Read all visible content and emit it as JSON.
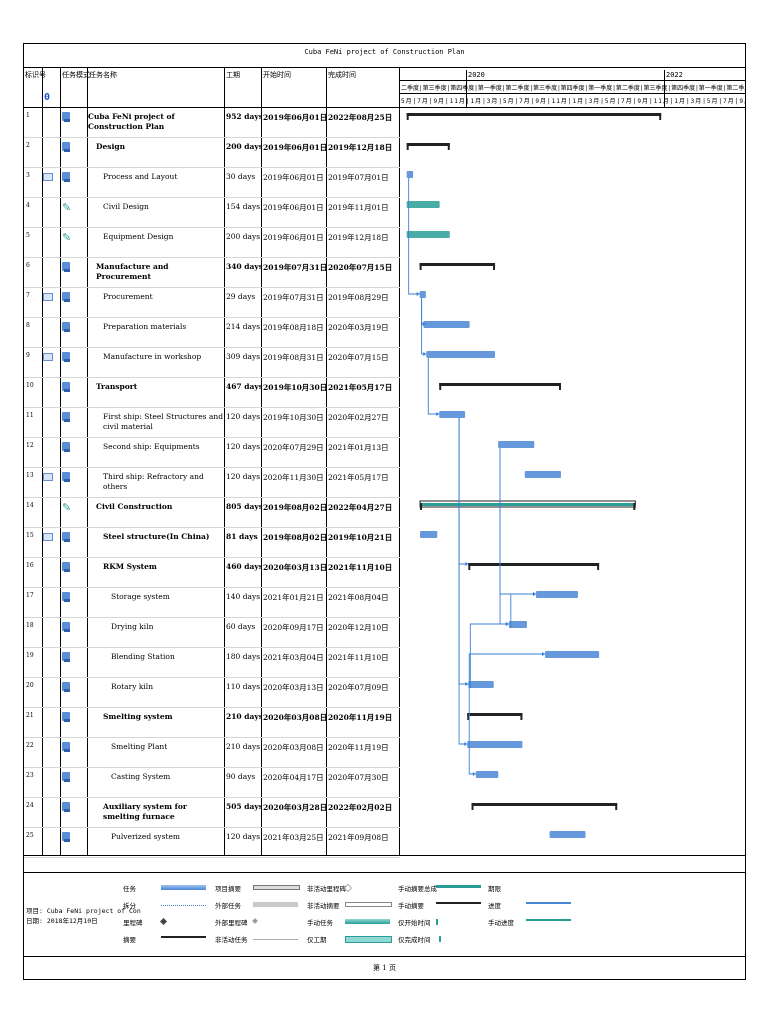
{
  "doc_title": "Cuba FeNi project of Construction Plan",
  "columns": {
    "id": "标识号",
    "mode": "任务模式",
    "name": "任务名称",
    "duration": "工期",
    "start": "开始时间",
    "finish": "完成时间"
  },
  "info_icon": "0",
  "timeline": {
    "years": [
      "2020",
      "2022"
    ],
    "quarters": "二季度|第三季度|第四季度|第一季度|第二季度|第三季度|第四季度|第一季度|第二季度|第三季度|第四季度|第一季度|第二季度|第三季度|第四季度|第一季度|第二季度|第三季度",
    "months": "5月|7月|9月|11月|1月|3月|5月|7月|9月|11月|1月|3月|5月|7月|9月|11月|1月|3月|5月|7月|9月"
  },
  "tasks": [
    {
      "id": "1",
      "name": "Cuba FeNi project of Construction Plan",
      "duration": "952 days",
      "start": "2019年06月01日",
      "finish": "2022年08月25日",
      "summary": true,
      "indent": 0
    },
    {
      "id": "2",
      "name": "Design",
      "duration": "200 days",
      "start": "2019年06月01日",
      "finish": "2019年12月18日",
      "summary": true,
      "indent": 1
    },
    {
      "id": "3",
      "name": "Process and Layout",
      "duration": "30 days",
      "start": "2019年06月01日",
      "finish": "2019年07月01日",
      "summary": false,
      "indent": 2
    },
    {
      "id": "4",
      "name": "Civil Design",
      "duration": "154 days",
      "start": "2019年06月01日",
      "finish": "2019年11月01日",
      "summary": false,
      "indent": 2
    },
    {
      "id": "5",
      "name": "Equipment Design",
      "duration": "200 days",
      "start": "2019年06月01日",
      "finish": "2019年12月18日",
      "summary": false,
      "indent": 2
    },
    {
      "id": "6",
      "name": "Manufacture and Procurement",
      "duration": "340 days",
      "start": "2019年07月31日",
      "finish": "2020年07月15日",
      "summary": true,
      "indent": 1
    },
    {
      "id": "7",
      "name": "Procurement",
      "duration": "29 days",
      "start": "2019年07月31日",
      "finish": "2019年08月29日",
      "summary": false,
      "indent": 2
    },
    {
      "id": "8",
      "name": "Preparation materials",
      "duration": "214 days",
      "start": "2019年08月18日",
      "finish": "2020年03月19日",
      "summary": false,
      "indent": 2
    },
    {
      "id": "9",
      "name": "Manufacture in workshop",
      "duration": "309 days",
      "start": "2019年08月31日",
      "finish": "2020年07月15日",
      "summary": false,
      "indent": 2
    },
    {
      "id": "10",
      "name": "Transport",
      "duration": "467 days",
      "start": "2019年10月30日",
      "finish": "2021年05月17日",
      "summary": true,
      "indent": 1
    },
    {
      "id": "11",
      "name": "First ship: Steel Structures and civil material",
      "duration": "120 days",
      "start": "2019年10月30日",
      "finish": "2020年02月27日",
      "summary": false,
      "indent": 2
    },
    {
      "id": "12",
      "name": "Second ship: Equipments",
      "duration": "120 days",
      "start": "2020年07月29日",
      "finish": "2021年01月13日",
      "summary": false,
      "indent": 2
    },
    {
      "id": "13",
      "name": "Third ship: Refractory and others",
      "duration": "120 days",
      "start": "2020年11月30日",
      "finish": "2021年05月17日",
      "summary": false,
      "indent": 2
    },
    {
      "id": "14",
      "name": "Civil Construction",
      "duration": "805 days",
      "start": "2019年08月02日",
      "finish": "2022年04月27日",
      "summary": true,
      "indent": 1
    },
    {
      "id": "15",
      "name": "Steel structure(In China)",
      "duration": "81 days",
      "start": "2019年08月02日",
      "finish": "2019年10月21日",
      "summary": true,
      "indent": 2
    },
    {
      "id": "16",
      "name": "RKM System",
      "duration": "460 days",
      "start": "2020年03月13日",
      "finish": "2021年11月10日",
      "summary": true,
      "indent": 2
    },
    {
      "id": "17",
      "name": "Storage system",
      "duration": "140 days",
      "start": "2021年01月21日",
      "finish": "2021年08月04日",
      "summary": false,
      "indent": 3
    },
    {
      "id": "18",
      "name": "Drying kiln",
      "duration": "60 days",
      "start": "2020年09月17日",
      "finish": "2020年12月10日",
      "summary": false,
      "indent": 3
    },
    {
      "id": "19",
      "name": "Blending Station",
      "duration": "180 days",
      "start": "2021年03月04日",
      "finish": "2021年11月10日",
      "summary": false,
      "indent": 3
    },
    {
      "id": "20",
      "name": "Rotary kiln",
      "duration": "110 days",
      "start": "2020年03月13日",
      "finish": "2020年07月09日",
      "summary": false,
      "indent": 3
    },
    {
      "id": "21",
      "name": "Smelting system",
      "duration": "210 days",
      "start": "2020年03月08日",
      "finish": "2020年11月19日",
      "summary": true,
      "indent": 2
    },
    {
      "id": "22",
      "name": "Smelting Plant",
      "duration": "210 days",
      "start": "2020年03月08日",
      "finish": "2020年11月19日",
      "summary": false,
      "indent": 3
    },
    {
      "id": "23",
      "name": "Casting System",
      "duration": "90 days",
      "start": "2020年04月17日",
      "finish": "2020年07月30日",
      "summary": false,
      "indent": 3
    },
    {
      "id": "24",
      "name": "Auxiliary system for smelting furnace",
      "duration": "505 days",
      "start": "2020年03月28日",
      "finish": "2022年02月02日",
      "summary": true,
      "indent": 2
    },
    {
      "id": "25",
      "name": "Pulverized system",
      "duration": "120 days",
      "start": "2021年03月25日",
      "finish": "2021年09月08日",
      "summary": false,
      "indent": 3
    }
  ],
  "legend": {
    "project_label": "项目: Cuba FeNi project of Con",
    "date_label": "日期: 2018年12月10日",
    "items": [
      "任务",
      "拆分",
      "里程碑",
      "摘要",
      "项目摘要",
      "外部任务",
      "外部里程碑",
      "非活动任务",
      "非活动里程碑",
      "非活动摘要",
      "手动任务",
      "仅工期",
      "手动摘要总成",
      "手动摘要",
      "仅开始时间",
      "仅完成时间",
      "期限",
      "进度",
      "手动进度"
    ]
  },
  "page_label": "第 1 页",
  "colors": {
    "task_bar": "#4b86d6",
    "manual_bar": "#2a9d97",
    "summary_bar": "#222222",
    "link": "#3a7fd5"
  }
}
